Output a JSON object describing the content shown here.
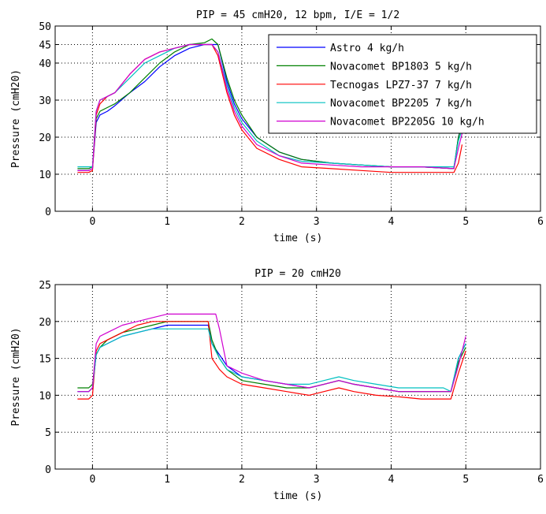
{
  "chart_data": [
    {
      "type": "line",
      "title": "PIP = 45 cmH20, 12 bpm, I/E = 1/2",
      "xlabel": "time (s)",
      "ylabel": "Pressure (cmH20)",
      "xlim": [
        -0.5,
        6
      ],
      "ylim": [
        0,
        50
      ],
      "xticks": [
        0,
        1,
        2,
        3,
        4,
        5,
        6
      ],
      "yticks": [
        0,
        10,
        20,
        30,
        40,
        45,
        50
      ],
      "xtick_labels": [
        "0",
        "1",
        "2",
        "3",
        "4",
        "5",
        "6"
      ],
      "ytick_labels": [
        "0",
        "10",
        "20",
        "30",
        "40",
        "45",
        "50"
      ],
      "grid": true,
      "legend_position": "top-right",
      "series": [
        {
          "name": "Astro 4 kg/h",
          "color": "#0000ff",
          "x": [
            -0.2,
            -0.05,
            0,
            0.05,
            0.1,
            0.2,
            0.3,
            0.5,
            0.7,
            0.9,
            1.1,
            1.3,
            1.5,
            1.6,
            1.68,
            1.8,
            1.9,
            2.0,
            2.2,
            2.5,
            2.8,
            3.2,
            3.6,
            4.0,
            4.4,
            4.84,
            4.9,
            4.95
          ],
          "y": [
            11,
            11,
            11.5,
            24,
            26,
            27,
            28.5,
            32,
            35,
            39,
            42,
            44,
            45,
            45,
            45,
            35,
            29,
            25,
            20,
            16,
            14,
            13,
            12.5,
            12,
            12,
            11.5,
            20,
            24
          ]
        },
        {
          "name": "Novacomet BP1803 5 kg/h",
          "color": "#008000",
          "x": [
            -0.2,
            -0.05,
            0,
            0.05,
            0.1,
            0.2,
            0.3,
            0.5,
            0.7,
            0.9,
            1.1,
            1.3,
            1.5,
            1.6,
            1.68,
            1.8,
            1.9,
            2.0,
            2.2,
            2.5,
            2.8,
            3.2,
            3.6,
            4.0,
            4.4,
            4.84,
            4.9,
            4.95
          ],
          "y": [
            11.5,
            11.5,
            12,
            25,
            27,
            28,
            29,
            32,
            36,
            40,
            43,
            45,
            45.5,
            46.5,
            45,
            36,
            30,
            26,
            20,
            16,
            14,
            13,
            12.5,
            12,
            12,
            11.5,
            20,
            23
          ]
        },
        {
          "name": "Tecnogas LPZ7-37 7 kg/h",
          "color": "#ff0000",
          "x": [
            -0.2,
            -0.05,
            0,
            0.05,
            0.1,
            0.2,
            0.3,
            0.5,
            0.7,
            0.9,
            1.1,
            1.3,
            1.5,
            1.6,
            1.68,
            1.8,
            1.9,
            2.0,
            2.2,
            2.5,
            2.8,
            3.2,
            3.6,
            4.0,
            4.4,
            4.84,
            4.9,
            4.95
          ],
          "y": [
            10.5,
            10.5,
            11,
            26,
            29,
            31,
            32,
            37,
            41,
            43,
            44,
            45,
            45,
            45,
            42,
            32,
            26,
            22,
            17,
            14,
            12,
            11.5,
            11,
            10.5,
            10.5,
            10.5,
            13,
            18
          ]
        },
        {
          "name": "Novacomet BP2205 7 kg/h",
          "color": "#00c0c0",
          "x": [
            -0.2,
            -0.05,
            0,
            0.05,
            0.1,
            0.2,
            0.3,
            0.5,
            0.7,
            0.9,
            1.1,
            1.3,
            1.5,
            1.6,
            1.68,
            1.8,
            1.9,
            2.0,
            2.2,
            2.5,
            2.8,
            3.2,
            3.6,
            4.0,
            4.4,
            4.84,
            4.9,
            4.95
          ],
          "y": [
            12,
            12,
            12,
            27,
            30,
            31,
            32,
            36,
            40,
            42,
            44,
            45,
            45,
            45,
            43,
            34,
            28,
            24,
            19,
            15,
            13.5,
            13,
            12.5,
            12,
            12,
            12,
            19,
            22
          ]
        },
        {
          "name": "Novacomet BP2205G 10 kg/h",
          "color": "#d000d0",
          "x": [
            -0.2,
            -0.05,
            0,
            0.05,
            0.1,
            0.2,
            0.3,
            0.5,
            0.7,
            0.9,
            1.1,
            1.3,
            1.5,
            1.6,
            1.68,
            1.8,
            1.9,
            2.0,
            2.2,
            2.5,
            2.8,
            3.2,
            3.6,
            4.0,
            4.4,
            4.84,
            4.9,
            4.95
          ],
          "y": [
            11,
            11,
            11.5,
            27,
            30,
            31,
            32,
            37,
            41,
            43,
            44,
            45,
            45,
            45,
            43,
            33,
            27,
            23,
            18,
            15,
            13,
            12.5,
            12,
            12,
            12,
            11.5,
            17,
            21
          ]
        }
      ]
    },
    {
      "type": "line",
      "title": "PIP = 20 cmH20",
      "xlabel": "time (s)",
      "ylabel": "Pressure (cmH20)",
      "xlim": [
        -0.5,
        6
      ],
      "ylim": [
        0,
        25
      ],
      "xticks": [
        0,
        1,
        2,
        3,
        4,
        5,
        6
      ],
      "yticks": [
        0,
        5,
        10,
        15,
        20,
        25
      ],
      "xtick_labels": [
        "0",
        "1",
        "2",
        "3",
        "4",
        "5",
        "6"
      ],
      "ytick_labels": [
        "0",
        "5",
        "10",
        "15",
        "20",
        "25"
      ],
      "grid": true,
      "series": [
        {
          "color": "#0000ff",
          "x": [
            -0.2,
            -0.05,
            0,
            0.05,
            0.1,
            0.2,
            0.4,
            0.6,
            0.8,
            1.0,
            1.2,
            1.4,
            1.55,
            1.6,
            1.7,
            1.8,
            2.0,
            2.3,
            2.6,
            2.9,
            3.1,
            3.3,
            3.5,
            3.8,
            4.1,
            4.4,
            4.7,
            4.8,
            4.9,
            5.0
          ],
          "y": [
            10.5,
            10.5,
            11,
            15.5,
            16.5,
            17,
            18,
            18.5,
            19,
            19.5,
            19.5,
            19.5,
            19.5,
            17,
            15.5,
            14,
            12.5,
            12,
            11.5,
            11,
            11.5,
            12,
            11.5,
            11,
            10.5,
            10.5,
            10.5,
            10.5,
            15,
            17
          ]
        },
        {
          "color": "#008000",
          "x": [
            -0.2,
            -0.05,
            0,
            0.05,
            0.1,
            0.2,
            0.4,
            0.6,
            0.8,
            1.0,
            1.2,
            1.4,
            1.55,
            1.6,
            1.7,
            1.8,
            2.0,
            2.3,
            2.6,
            2.9,
            3.1,
            3.3,
            3.5,
            3.8,
            4.1,
            4.4,
            4.7,
            4.8,
            4.9,
            5.0
          ],
          "y": [
            11,
            11,
            11.5,
            15.5,
            16.5,
            17.5,
            18.5,
            19,
            19.5,
            20,
            20,
            20,
            20,
            17.5,
            15,
            13.5,
            12,
            11.5,
            11,
            11,
            11.5,
            12,
            11.5,
            11,
            10.5,
            10.5,
            10.5,
            10.5,
            14.5,
            16.5
          ]
        },
        {
          "color": "#ff0000",
          "x": [
            -0.2,
            -0.05,
            0,
            0.05,
            0.1,
            0.2,
            0.4,
            0.6,
            0.8,
            1.0,
            1.2,
            1.4,
            1.55,
            1.6,
            1.7,
            1.8,
            2.0,
            2.3,
            2.6,
            2.9,
            3.1,
            3.3,
            3.5,
            3.8,
            4.1,
            4.4,
            4.7,
            4.8,
            4.9,
            5.0
          ],
          "y": [
            9.5,
            9.5,
            10,
            16,
            17,
            17.5,
            18.5,
            19.5,
            20,
            20,
            20,
            20,
            20,
            15,
            13.5,
            12.5,
            11.5,
            11,
            10.5,
            10,
            10.5,
            11,
            10.5,
            10,
            9.8,
            9.5,
            9.5,
            9.5,
            13,
            16
          ]
        },
        {
          "color": "#00c0c0",
          "x": [
            -0.2,
            -0.05,
            0,
            0.05,
            0.1,
            0.2,
            0.4,
            0.6,
            0.8,
            1.0,
            1.2,
            1.4,
            1.55,
            1.6,
            1.7,
            1.8,
            2.0,
            2.3,
            2.6,
            2.9,
            3.1,
            3.3,
            3.5,
            3.8,
            4.1,
            4.4,
            4.7,
            4.8,
            4.9,
            5.0
          ],
          "y": [
            10.5,
            10.5,
            11,
            15.5,
            16.5,
            17,
            18,
            18.5,
            19,
            19,
            19,
            19,
            19,
            17,
            15,
            13.5,
            12.5,
            12,
            11.5,
            11.5,
            12,
            12.5,
            12,
            11.5,
            11,
            11,
            11,
            10.5,
            15,
            17
          ]
        },
        {
          "color": "#d000d0",
          "x": [
            -0.2,
            -0.05,
            0,
            0.05,
            0.1,
            0.2,
            0.4,
            0.6,
            0.8,
            1.0,
            1.2,
            1.4,
            1.55,
            1.65,
            1.7,
            1.8,
            2.0,
            2.3,
            2.6,
            2.9,
            3.1,
            3.3,
            3.5,
            3.8,
            4.1,
            4.4,
            4.7,
            4.8,
            4.9,
            5.0
          ],
          "y": [
            10.5,
            10.5,
            11,
            17,
            18,
            18.5,
            19.5,
            20,
            20.5,
            21,
            21,
            21,
            21,
            21,
            19,
            14,
            13,
            12,
            11.5,
            11,
            11.5,
            12,
            11.5,
            11,
            10.5,
            10.5,
            10.5,
            10.5,
            14,
            18
          ]
        }
      ]
    }
  ]
}
